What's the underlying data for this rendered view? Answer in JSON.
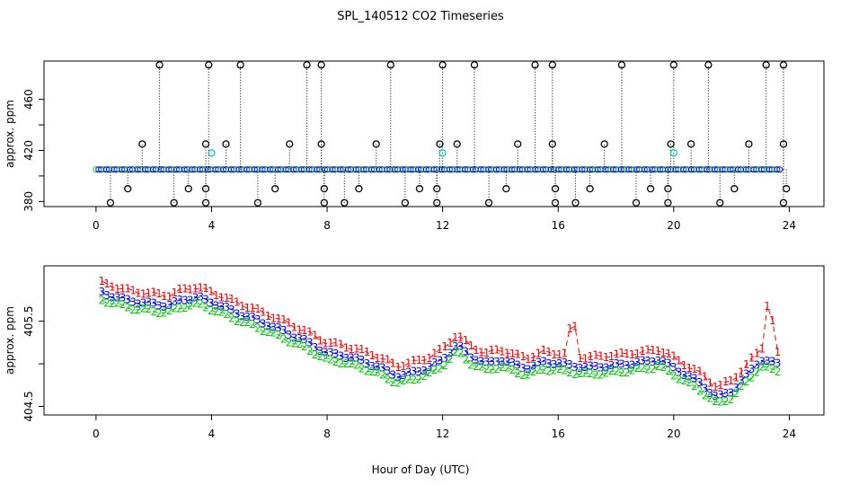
{
  "title": "SPL_140512  CO2 Timeseries",
  "xlabel": "Hour of Day (UTC)",
  "colors": {
    "s1": "#ff0000",
    "s2": "#00cc00",
    "s3": "#0000ff",
    "cyan": "#00cccc",
    "black": "#000000"
  },
  "chart_data": [
    {
      "type": "scatter",
      "ylabel": "approx. ppm",
      "xlim": [
        -1.8,
        25.2
      ],
      "ylim": [
        376,
        490
      ],
      "x_ticks": [
        "0",
        "4",
        "8",
        "12",
        "16",
        "20",
        "24"
      ],
      "y_ticks": [
        "380",
        "420",
        "460"
      ],
      "baseline_ppm": 405,
      "spike_markers_high": [
        {
          "x": 2.2,
          "y": 487
        },
        {
          "x": 3.9,
          "y": 487
        },
        {
          "x": 5.0,
          "y": 487
        },
        {
          "x": 7.3,
          "y": 487
        },
        {
          "x": 7.8,
          "y": 487
        },
        {
          "x": 10.2,
          "y": 487
        },
        {
          "x": 12.0,
          "y": 487
        },
        {
          "x": 13.1,
          "y": 487
        },
        {
          "x": 15.2,
          "y": 487
        },
        {
          "x": 15.8,
          "y": 487
        },
        {
          "x": 18.2,
          "y": 487
        },
        {
          "x": 20.0,
          "y": 487
        },
        {
          "x": 21.2,
          "y": 487
        },
        {
          "x": 23.2,
          "y": 487
        },
        {
          "x": 23.8,
          "y": 487
        }
      ],
      "spike_markers_mid": [
        {
          "x": 1.6,
          "y": 425
        },
        {
          "x": 3.8,
          "y": 425
        },
        {
          "x": 4.5,
          "y": 425
        },
        {
          "x": 6.7,
          "y": 425
        },
        {
          "x": 7.8,
          "y": 425
        },
        {
          "x": 9.7,
          "y": 425
        },
        {
          "x": 11.9,
          "y": 425
        },
        {
          "x": 12.5,
          "y": 425
        },
        {
          "x": 14.6,
          "y": 425
        },
        {
          "x": 15.8,
          "y": 425
        },
        {
          "x": 17.6,
          "y": 425
        },
        {
          "x": 19.9,
          "y": 425
        },
        {
          "x": 20.6,
          "y": 425
        },
        {
          "x": 22.6,
          "y": 425
        },
        {
          "x": 23.8,
          "y": 425
        }
      ],
      "spike_markers_low": [
        {
          "x": 0.5,
          "y": 379
        },
        {
          "x": 1.1,
          "y": 390
        },
        {
          "x": 2.7,
          "y": 379
        },
        {
          "x": 3.2,
          "y": 390
        },
        {
          "x": 3.8,
          "y": 379
        },
        {
          "x": 3.8,
          "y": 390
        },
        {
          "x": 5.6,
          "y": 379
        },
        {
          "x": 6.2,
          "y": 390
        },
        {
          "x": 7.9,
          "y": 379
        },
        {
          "x": 7.9,
          "y": 390
        },
        {
          "x": 8.6,
          "y": 379
        },
        {
          "x": 9.1,
          "y": 390
        },
        {
          "x": 10.7,
          "y": 379
        },
        {
          "x": 11.2,
          "y": 390
        },
        {
          "x": 11.8,
          "y": 379
        },
        {
          "x": 11.8,
          "y": 390
        },
        {
          "x": 13.6,
          "y": 379
        },
        {
          "x": 14.2,
          "y": 390
        },
        {
          "x": 15.9,
          "y": 379
        },
        {
          "x": 15.9,
          "y": 390
        },
        {
          "x": 16.6,
          "y": 379
        },
        {
          "x": 17.1,
          "y": 390
        },
        {
          "x": 18.7,
          "y": 379
        },
        {
          "x": 19.2,
          "y": 390
        },
        {
          "x": 19.8,
          "y": 379
        },
        {
          "x": 19.8,
          "y": 390
        },
        {
          "x": 21.6,
          "y": 379
        },
        {
          "x": 22.1,
          "y": 390
        },
        {
          "x": 23.8,
          "y": 379
        },
        {
          "x": 23.9,
          "y": 390
        }
      ],
      "cyan_markers": [
        {
          "x": 4.0,
          "y": 418
        },
        {
          "x": 12.0,
          "y": 418
        },
        {
          "x": 20.0,
          "y": 418
        }
      ]
    },
    {
      "type": "line",
      "ylabel": "approx. ppm",
      "xlim": [
        -1.8,
        25.2
      ],
      "ylim": [
        404.4,
        406.15
      ],
      "x_ticks": [
        "0",
        "4",
        "8",
        "12",
        "16",
        "20",
        "24"
      ],
      "y_ticks": [
        "404.5",
        "405.5"
      ],
      "y_tick_values": [
        404.5,
        405.0,
        405.5
      ],
      "hour_knots": [
        0,
        0.5,
        1,
        1.5,
        2,
        2.5,
        3,
        3.5,
        4,
        4.5,
        5,
        5.5,
        6,
        6.5,
        7,
        7.5,
        8,
        8.5,
        9,
        9.5,
        10,
        10.5,
        11,
        11.5,
        12,
        12.5,
        13,
        13.5,
        14,
        14.5,
        15,
        15.5,
        16,
        16.5,
        17,
        17.5,
        18,
        18.5,
        19,
        19.5,
        20,
        20.5,
        21,
        21.5,
        22,
        22.5,
        23,
        23.5
      ],
      "series": [
        {
          "name": "1",
          "label_char": "1",
          "offset": 0.12,
          "spikes": [
            {
              "x": 16.5,
              "y": 405.6
            },
            {
              "x": 23.3,
              "y": 405.85
            }
          ]
        },
        {
          "name": "3",
          "label_char": "3",
          "offset": 0.0,
          "spikes": []
        },
        {
          "name": "2",
          "label_char": "2",
          "offset": -0.08,
          "spikes": []
        }
      ],
      "base_values": [
        405.85,
        405.8,
        405.75,
        405.72,
        405.7,
        405.68,
        405.75,
        405.78,
        405.72,
        405.65,
        405.58,
        405.52,
        405.45,
        405.38,
        405.3,
        405.22,
        405.12,
        405.1,
        405.05,
        405.0,
        404.92,
        404.85,
        404.9,
        404.95,
        405.05,
        405.22,
        405.08,
        405.0,
        405.05,
        404.98,
        404.95,
        405.02,
        405.0,
        404.98,
        404.95,
        404.97,
        404.98,
        405.0,
        405.02,
        405.05,
        404.95,
        404.85,
        404.75,
        404.6,
        404.68,
        404.85,
        405.05,
        405.0
      ]
    }
  ]
}
